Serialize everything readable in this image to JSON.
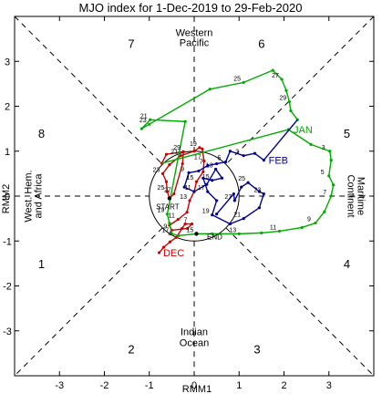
{
  "chart_data": {
    "type": "line",
    "title": "MJO index for 1-Dec-2019 to 29-Feb-2020",
    "xlabel": "RMM1",
    "ylabel": "RMM2",
    "xlim": [
      -4,
      4
    ],
    "ylim": [
      -4,
      4
    ],
    "xticks": [
      -3,
      -2,
      -1,
      0,
      1,
      2,
      3
    ],
    "yticks": [
      -3,
      -2,
      -1,
      0,
      1,
      2,
      3
    ],
    "unit_circle_radius": 1,
    "phase_numbers": [
      "1",
      "2",
      "3",
      "4",
      "5",
      "6",
      "7",
      "8"
    ],
    "region_labels": {
      "top": [
        "Western",
        "Pacific"
      ],
      "bottom": [
        "Indian",
        "Ocean"
      ],
      "left": [
        "West. Hem.",
        "and Africa"
      ],
      "right": [
        "Maritime",
        "Continent"
      ]
    },
    "colors": {
      "dec": "#cc0000",
      "jan": "#00aa00",
      "feb": "#00008b",
      "start_end": "#000000"
    },
    "annotations": {
      "start": "START",
      "end": "END"
    },
    "series": [
      {
        "name": "DEC",
        "color": "#cc0000",
        "label_at_day": 1,
        "points": [
          [
            -0.78,
            -1.26
          ],
          [
            -0.68,
            -1.14
          ],
          [
            -0.54,
            -1.02
          ],
          [
            -0.4,
            -0.92
          ],
          [
            -0.27,
            -0.72
          ],
          [
            -0.2,
            -0.62
          ],
          [
            -0.05,
            -0.62
          ],
          [
            -0.15,
            -0.72
          ],
          [
            -0.5,
            -0.76
          ],
          [
            -0.55,
            -0.65
          ],
          [
            -0.36,
            -0.52
          ],
          [
            -0.16,
            -0.36
          ],
          [
            -0.1,
            -0.1
          ],
          [
            0.0,
            0.1
          ],
          [
            0.05,
            0.32
          ],
          [
            0.2,
            0.54
          ],
          [
            0.22,
            0.78
          ],
          [
            0.18,
            1.05
          ],
          [
            0.12,
            1.08
          ],
          [
            0.0,
            1.0
          ],
          [
            -0.3,
            0.9
          ],
          [
            -0.55,
            0.7
          ],
          [
            -0.7,
            0.5
          ],
          [
            -0.62,
            0.32
          ],
          [
            -0.6,
            0.1
          ],
          [
            -0.55,
            -0.05
          ],
          [
            -0.45,
            0.05
          ],
          [
            -0.26,
            0.72
          ],
          [
            -0.24,
            0.99
          ],
          [
            -0.62,
            0.93
          ],
          [
            -0.72,
            0.73
          ]
        ]
      },
      {
        "name": "JAN",
        "color": "#00aa00",
        "label_at_day": 1,
        "points": [
          [
            2.1,
            1.48
          ],
          [
            2.6,
            1.15
          ],
          [
            3.02,
            1.0
          ],
          [
            3.05,
            0.8
          ],
          [
            3.0,
            0.45
          ],
          [
            3.1,
            0.25
          ],
          [
            3.05,
            0.0
          ],
          [
            2.9,
            -0.35
          ],
          [
            2.7,
            -0.6
          ],
          [
            2.4,
            -0.7
          ],
          [
            1.9,
            -0.78
          ],
          [
            1.5,
            -0.82
          ],
          [
            1.0,
            -0.84
          ],
          [
            0.4,
            -0.84
          ],
          [
            0.05,
            -0.84
          ],
          [
            -0.35,
            -0.88
          ],
          [
            -0.5,
            -0.84
          ],
          [
            -0.55,
            -0.6
          ],
          [
            -0.6,
            -0.4
          ],
          [
            -0.2,
            1.66
          ],
          [
            -0.98,
            1.7
          ],
          [
            -1.17,
            1.5
          ],
          [
            -1.0,
            1.6
          ],
          [
            0.35,
            2.38
          ],
          [
            1.1,
            2.53
          ],
          [
            1.75,
            2.8
          ],
          [
            1.95,
            2.6
          ],
          [
            2.05,
            2.35
          ],
          [
            2.12,
            2.1
          ],
          [
            2.15,
            1.9
          ],
          [
            2.3,
            1.7
          ]
        ]
      },
      {
        "name": "FEB",
        "color": "#00008b",
        "label_at_day": 1,
        "points": [
          [
            1.55,
            0.8
          ],
          [
            1.35,
            0.95
          ],
          [
            1.1,
            0.9
          ],
          [
            0.8,
            1.0
          ],
          [
            0.7,
            0.76
          ],
          [
            0.5,
            0.72
          ],
          [
            0.3,
            0.68
          ],
          [
            0.1,
            0.56
          ],
          [
            -0.12,
            0.52
          ],
          [
            -0.22,
            0.2
          ],
          [
            0.0,
            0.1
          ],
          [
            0.28,
            0.26
          ],
          [
            0.48,
            0.6
          ],
          [
            0.62,
            0.4
          ],
          [
            0.4,
            0.35
          ],
          [
            0.2,
            0.4
          ],
          [
            0.3,
            0.1
          ],
          [
            0.5,
            -0.1
          ],
          [
            0.4,
            -0.42
          ],
          [
            0.8,
            -0.62
          ],
          [
            1.1,
            -0.5
          ],
          [
            1.45,
            -0.26
          ],
          [
            1.55,
            0.05
          ],
          [
            1.45,
            0.1
          ],
          [
            1.2,
            0.3
          ],
          [
            1.05,
            0.2
          ],
          [
            0.9,
            -0.1
          ],
          [
            0.88,
            0.05
          ],
          [
            0.5,
            -0.4
          ]
        ]
      }
    ],
    "day_labels": [
      {
        "series": 0,
        "day": 4,
        "text": "4"
      },
      {
        "series": 0,
        "day": 7,
        "text": "7"
      },
      {
        "series": 0,
        "day": 9,
        "text": "9"
      },
      {
        "series": 0,
        "day": 11,
        "text": "11"
      },
      {
        "series": 0,
        "day": 13,
        "text": "13"
      },
      {
        "series": 0,
        "day": 15,
        "text": "15"
      },
      {
        "series": 0,
        "day": 17,
        "text": "17"
      },
      {
        "series": 0,
        "day": 19,
        "text": "19"
      },
      {
        "series": 0,
        "day": 21,
        "text": "21"
      },
      {
        "series": 0,
        "day": 23,
        "text": "23"
      },
      {
        "series": 0,
        "day": 25,
        "text": "25"
      },
      {
        "series": 0,
        "day": 27,
        "text": "27"
      },
      {
        "series": 0,
        "day": 29,
        "text": "29"
      },
      {
        "series": 1,
        "day": 3,
        "text": "3"
      },
      {
        "series": 1,
        "day": 5,
        "text": "5"
      },
      {
        "series": 1,
        "day": 7,
        "text": "7"
      },
      {
        "series": 1,
        "day": 9,
        "text": "9"
      },
      {
        "series": 1,
        "day": 11,
        "text": "11"
      },
      {
        "series": 1,
        "day": 13,
        "text": "13"
      },
      {
        "series": 1,
        "day": 15,
        "text": "15"
      },
      {
        "series": 1,
        "day": 17,
        "text": "17"
      },
      {
        "series": 1,
        "day": 19,
        "text": "19"
      },
      {
        "series": 1,
        "day": 21,
        "text": "21"
      },
      {
        "series": 1,
        "day": 23,
        "text": "23"
      },
      {
        "series": 1,
        "day": 25,
        "text": "25"
      },
      {
        "series": 1,
        "day": 27,
        "text": "27"
      },
      {
        "series": 1,
        "day": 29,
        "text": "29"
      },
      {
        "series": 2,
        "day": 3,
        "text": "3"
      },
      {
        "series": 2,
        "day": 5,
        "text": "5"
      },
      {
        "series": 2,
        "day": 7,
        "text": "7"
      },
      {
        "series": 2,
        "day": 9,
        "text": "9"
      },
      {
        "series": 2,
        "day": 11,
        "text": "11"
      },
      {
        "series": 2,
        "day": 13,
        "text": "13"
      },
      {
        "series": 2,
        "day": 15,
        "text": "15"
      },
      {
        "series": 2,
        "day": 17,
        "text": "17"
      },
      {
        "series": 2,
        "day": 19,
        "text": "19"
      },
      {
        "series": 2,
        "day": 21,
        "text": "21"
      },
      {
        "series": 2,
        "day": 23,
        "text": "23"
      },
      {
        "series": 2,
        "day": 25,
        "text": "25"
      },
      {
        "series": 2,
        "day": 27,
        "text": "27"
      }
    ],
    "grid": false,
    "legend": "none"
  }
}
